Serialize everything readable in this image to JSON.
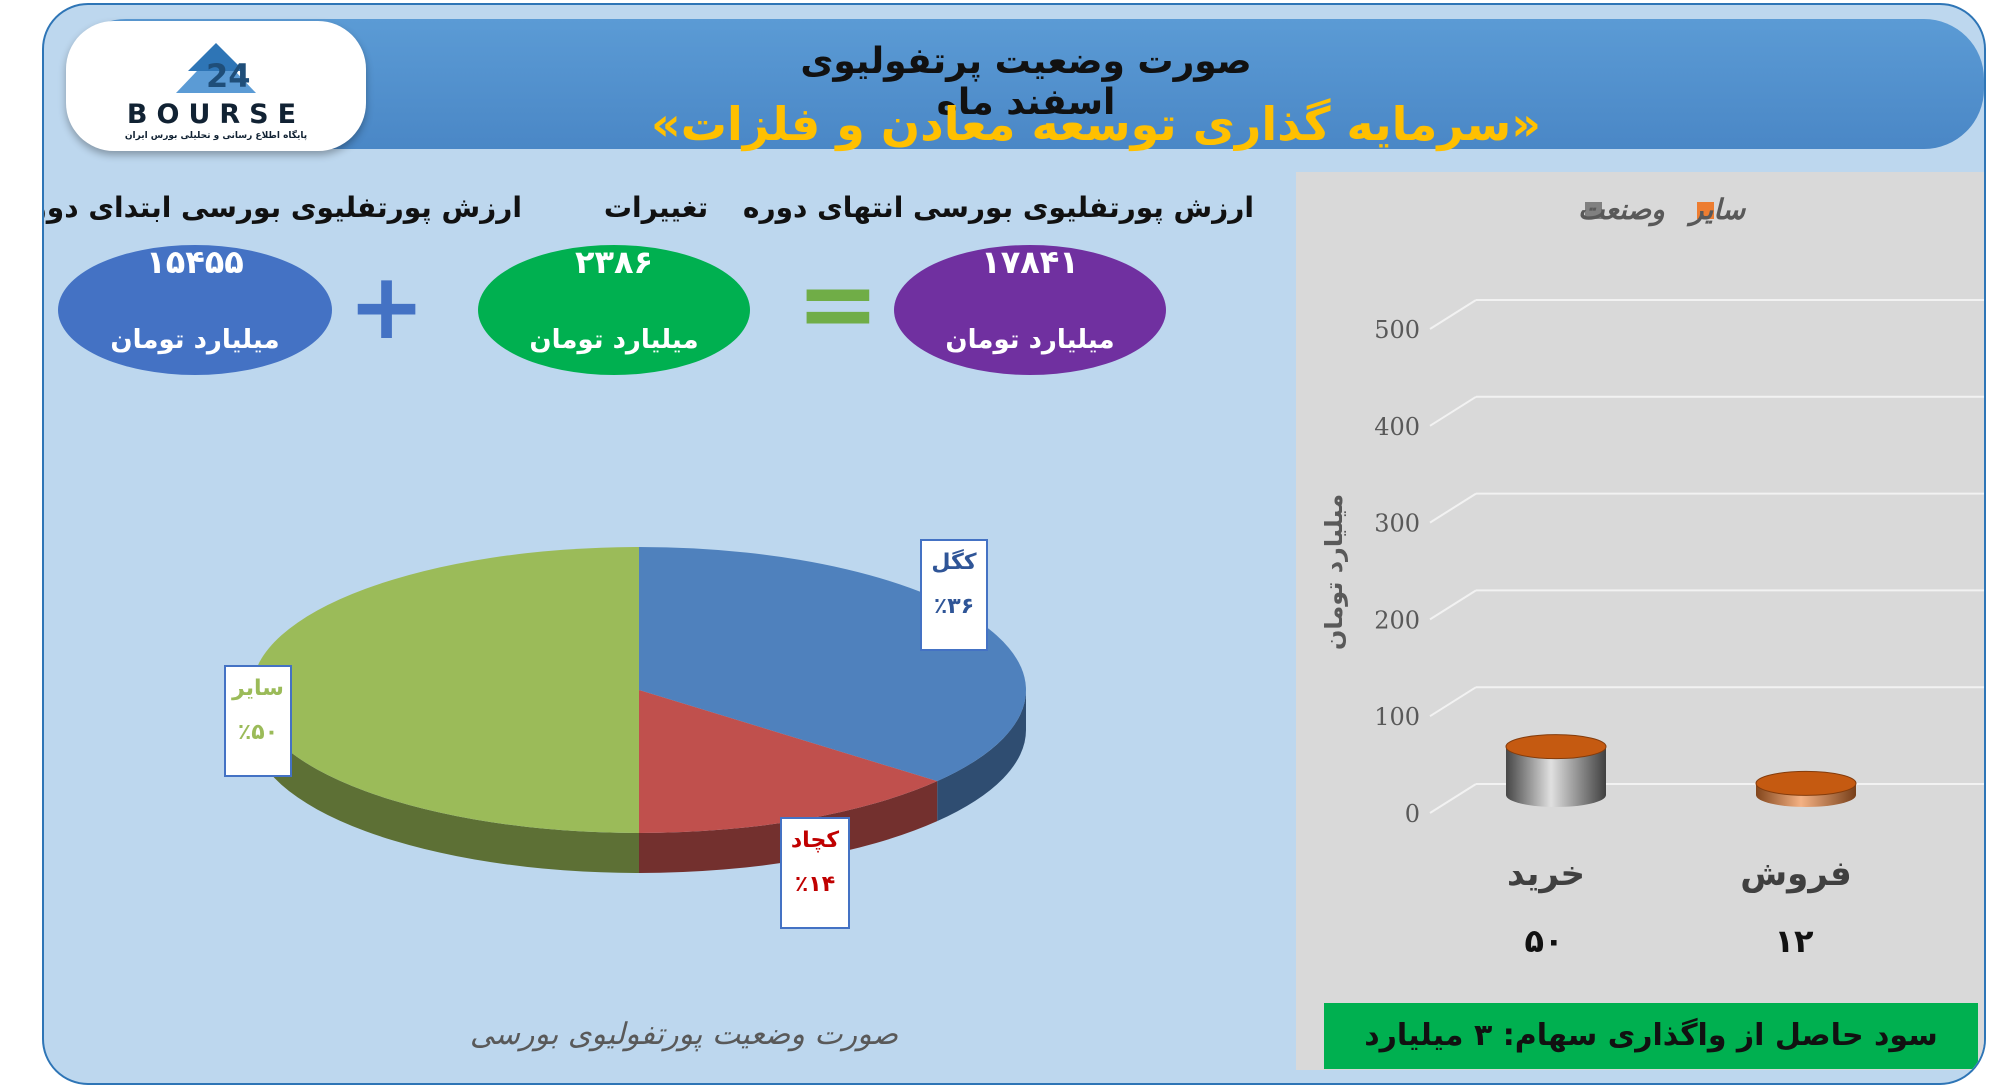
{
  "title": "صورت وضعیت پرتفولیوی اسفند ماه",
  "subtitle": "«سرمایه گذاری توسعه معادن و فلزات»",
  "logo": {
    "word": "BOURSE",
    "tagline": "پایگاه اطلاع رسانی و تحلیلی بورس ایران"
  },
  "summary": {
    "start": {
      "label": "ارزش پورتفلیوی بورسی ابتدای دوره",
      "value": "۱۵۴۵۵",
      "unit": "میلیارد تومان"
    },
    "change": {
      "label": "تغییرات",
      "value": "۲۳۸۶",
      "unit": "میلیارد تومان"
    },
    "end": {
      "label": "ارزش پورتفلیوی بورسی انتهای دوره",
      "value": "۱۷۸۴۱",
      "unit": "میلیارد تومان"
    },
    "plus_symbol": "+",
    "equals_symbol": "="
  },
  "colors": {
    "start": "#4472c4",
    "change": "#00b050",
    "end": "#7030a0",
    "operator_plus": "#4472c4",
    "operator_equals": "#70ad47",
    "footer": "#00b050"
  },
  "footer_text": "سود حاصل از واگذاری سهام: ۳ میلیارد تومان",
  "chart_data": [
    {
      "type": "pie",
      "title": "صورت وضعیت پورتفولیوی بورسی",
      "slices": [
        {
          "name": "کگل",
          "value": 36,
          "label": "٪۳۶",
          "color": "#4f81bd"
        },
        {
          "name": "کچاد",
          "value": 14,
          "label": "٪۱۴",
          "color": "#c0504d"
        },
        {
          "name": "سایر",
          "value": 50,
          "label": "٪۵۰",
          "color": "#9bbb59"
        }
      ]
    },
    {
      "type": "bar",
      "categories": [
        "خرید",
        "فروش"
      ],
      "category_totals": [
        "۵۰",
        "۱۲"
      ],
      "series": [
        {
          "name": "وصنعت",
          "values": [
            50,
            0
          ],
          "color": "#808080"
        },
        {
          "name": "سایر",
          "values": [
            0,
            12
          ],
          "color": "#ed7d31"
        }
      ],
      "ylabel": "میلیارد تومان",
      "ylim": [
        0,
        500
      ],
      "yticks": [
        0,
        100,
        200,
        300,
        400,
        500
      ],
      "legend_position": "top",
      "grid": true
    }
  ]
}
